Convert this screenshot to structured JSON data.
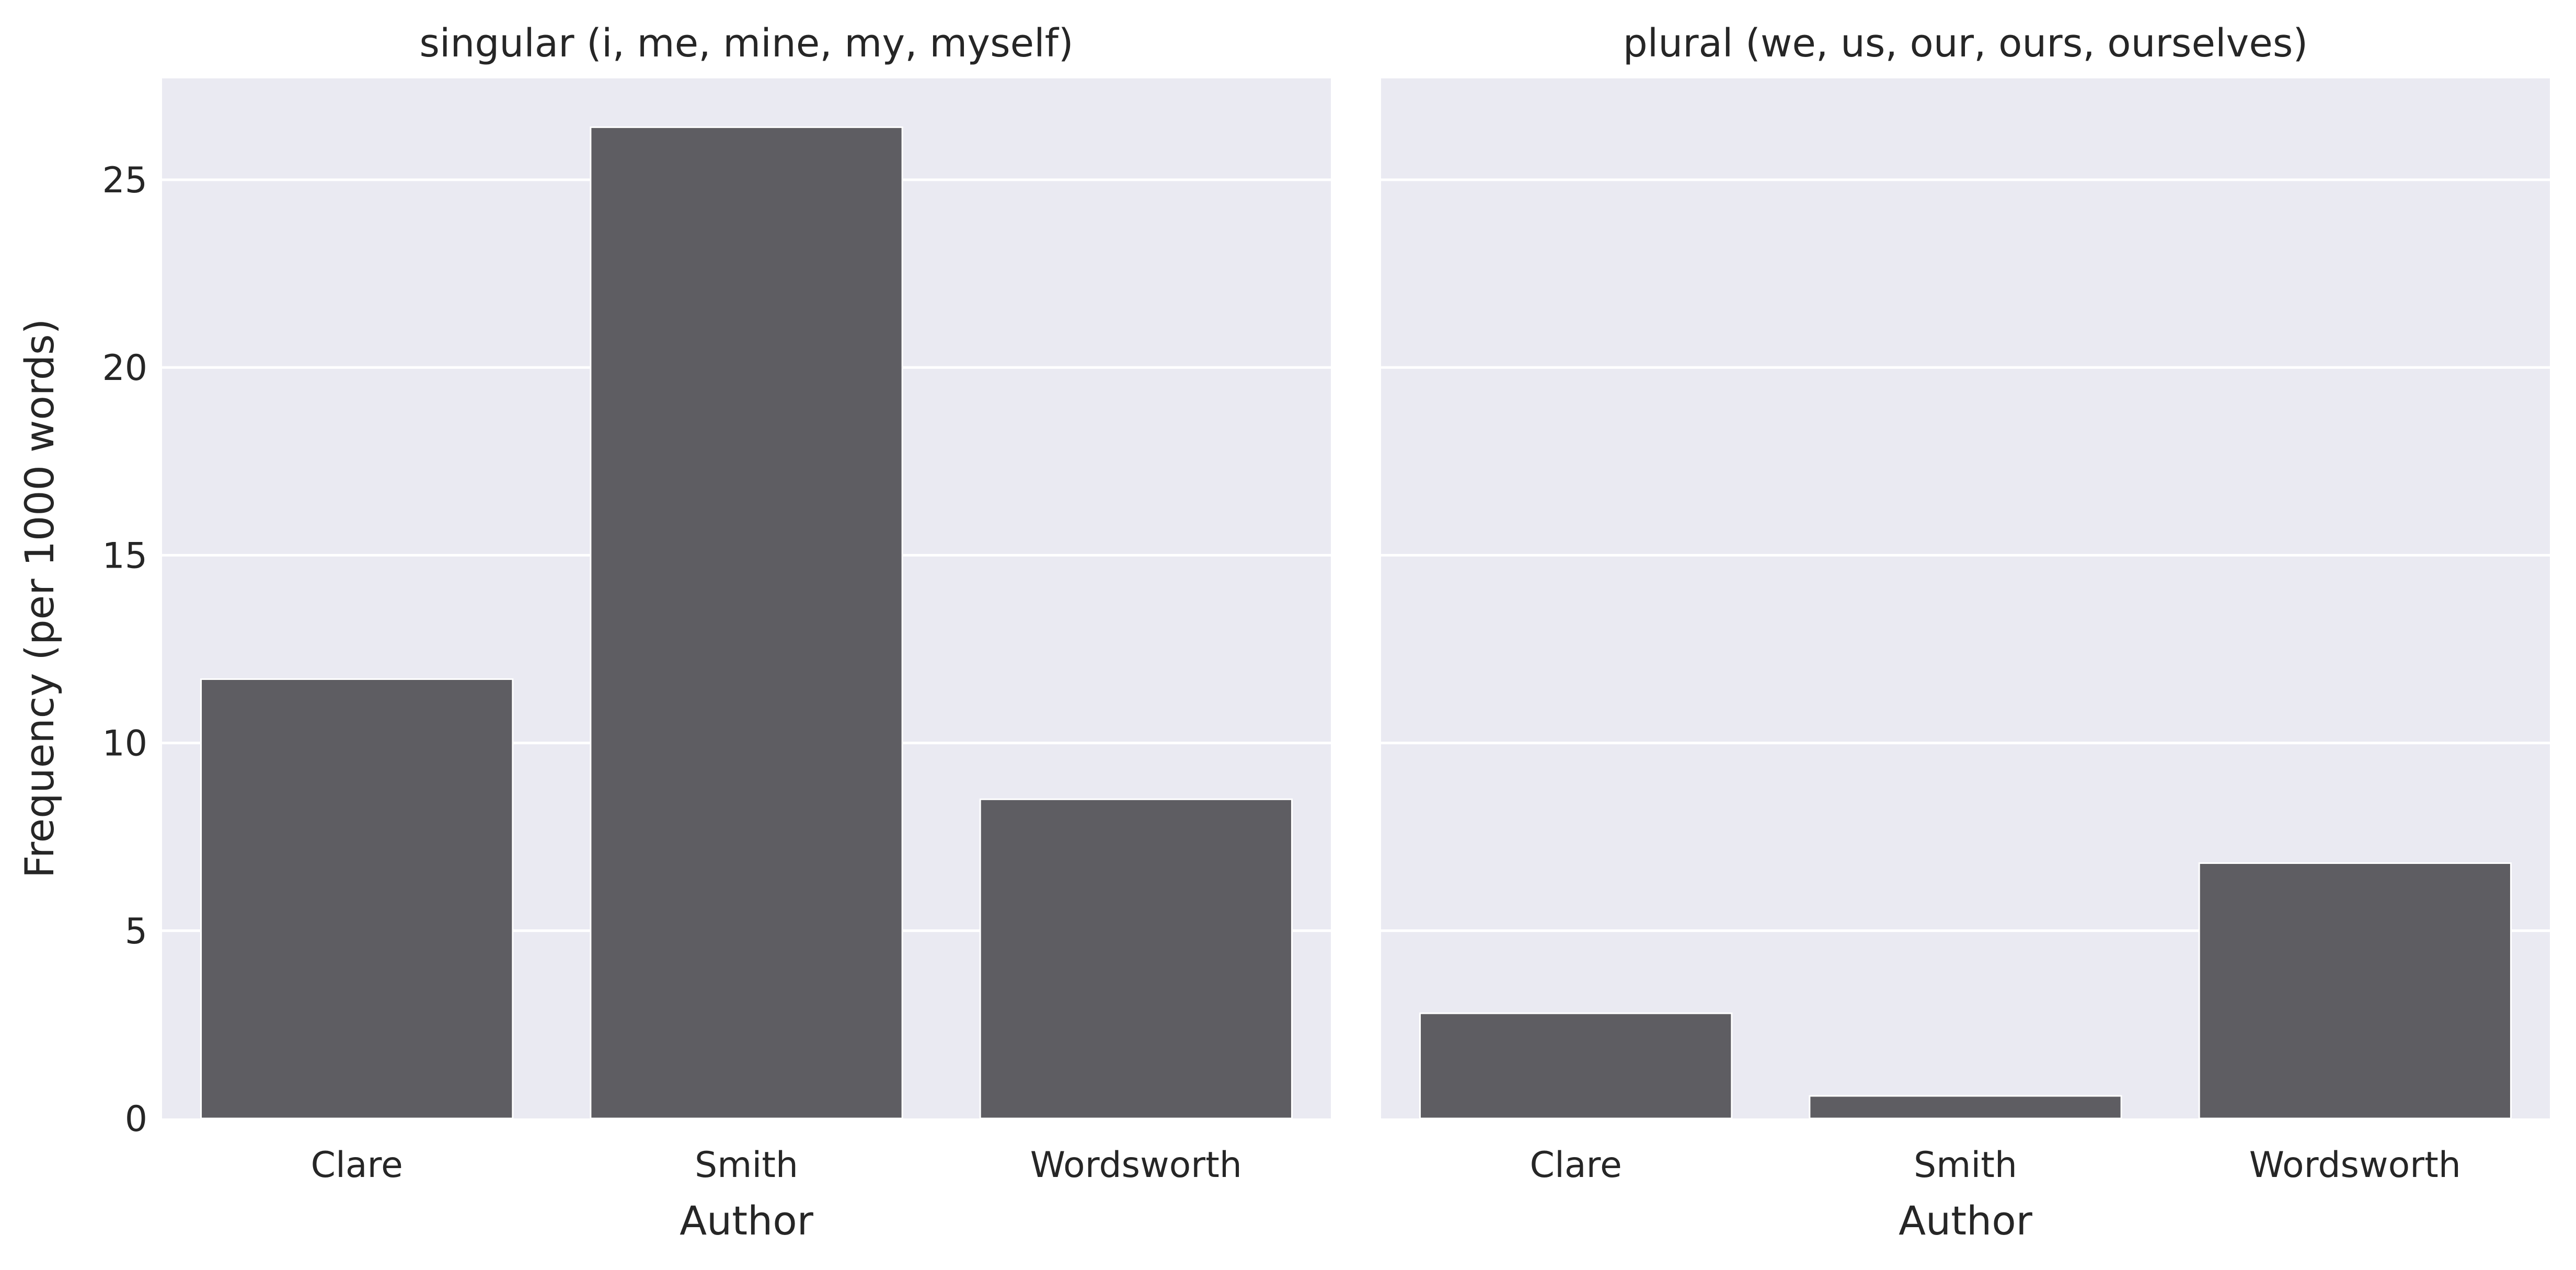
{
  "chart_data": [
    {
      "type": "bar",
      "title": "singular (i, me, mine, my, myself)",
      "categories": [
        "Clare",
        "Smith",
        "Wordsworth"
      ],
      "values": [
        11.7,
        26.4,
        8.5
      ],
      "xlabel": "Author",
      "ylabel": "Frequency (per 1000 words)",
      "ylim": [
        0,
        27.7
      ],
      "yticks": [
        0,
        5,
        10,
        15,
        20,
        25
      ],
      "color": "#5e5d62",
      "grid": true
    },
    {
      "type": "bar",
      "title": "plural (we, us, our, ours, ourselves)",
      "categories": [
        "Clare",
        "Smith",
        "Wordsworth"
      ],
      "values": [
        2.8,
        0.6,
        6.8
      ],
      "xlabel": "Author",
      "ylabel": "",
      "ylim": [
        0,
        27.7
      ],
      "yticks": [],
      "color": "#5e5d62",
      "grid": true
    }
  ]
}
